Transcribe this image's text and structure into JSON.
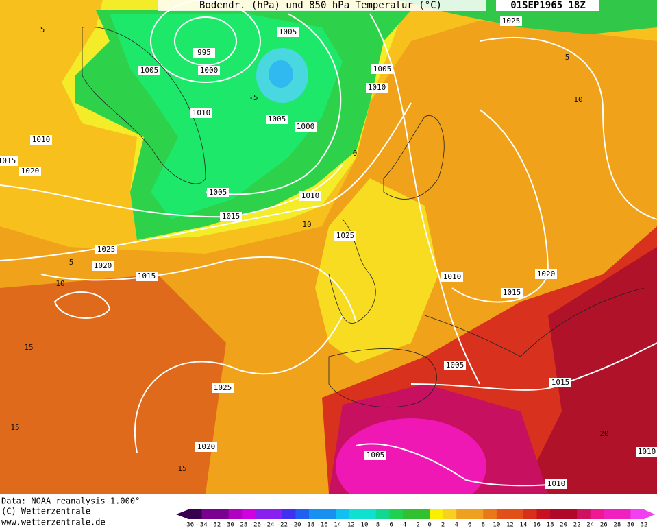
{
  "header": {
    "title": "Bodendr. (hPa) und 850 hPa Temperatur (°C)",
    "date": "01SEP1965 18Z"
  },
  "footer": {
    "source": "Data: NOAA reanalysis 1.000°",
    "copyright": "(C) Wetterzentrale",
    "url": "www.wetterzentrale.de"
  },
  "isobar_labels": [
    "1005",
    "995",
    "1005",
    "1000",
    "1005",
    "1010",
    "1010",
    "1005",
    "1000",
    "1010",
    "1020",
    "1015",
    "1005",
    "1010",
    "1015",
    "1025",
    "1025",
    "1020",
    "1015",
    "1010",
    "1020",
    "1015",
    "1005",
    "1015",
    "1025",
    "1020",
    "1005",
    "1010",
    "1025",
    "1010"
  ],
  "temperature_labels": [
    "5",
    "5",
    "10",
    "10",
    "5",
    "10",
    "15",
    "15",
    "15",
    "20",
    "0",
    "-5"
  ],
  "colorbar": {
    "labels": [
      -36,
      -34,
      -32,
      -30,
      -28,
      -26,
      -24,
      -22,
      -20,
      -18,
      -16,
      -14,
      -12,
      -10,
      -8,
      -6,
      -4,
      -2,
      0,
      2,
      4,
      6,
      8,
      10,
      12,
      14,
      16,
      18,
      20,
      22,
      24,
      26,
      28,
      30,
      32
    ]
  }
}
